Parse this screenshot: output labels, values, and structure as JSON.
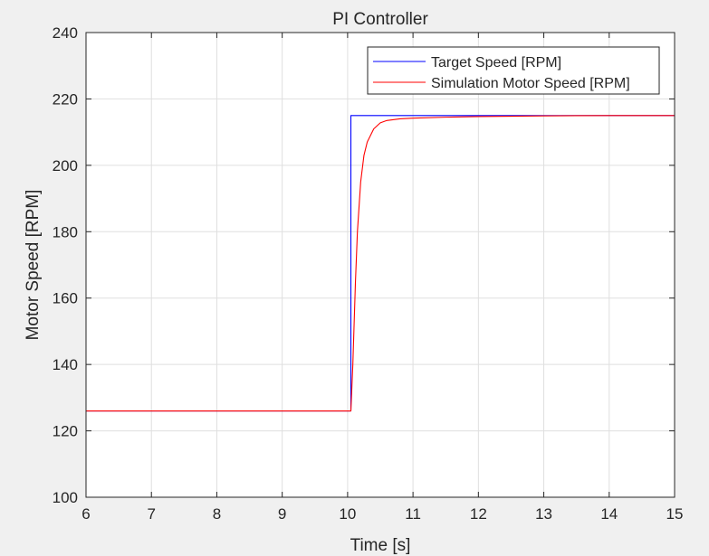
{
  "chart_data": {
    "type": "line",
    "title": "PI Controller",
    "xlabel": "Time [s]",
    "ylabel": "Motor Speed [RPM]",
    "xlim": [
      6,
      15
    ],
    "ylim": [
      100,
      240
    ],
    "xticks": [
      6,
      7,
      8,
      9,
      10,
      11,
      12,
      13,
      14,
      15
    ],
    "yticks": [
      100,
      120,
      140,
      160,
      180,
      200,
      220,
      240
    ],
    "grid": true,
    "legend_position": "top-right",
    "series": [
      {
        "name": "Target Speed [RPM]",
        "color": "#0000ff",
        "x": [
          6,
          10.05,
          10.05,
          15
        ],
        "y": [
          126,
          126,
          215,
          215
        ]
      },
      {
        "name": "Simulation Motor Speed [RPM]",
        "color": "#ff0000",
        "x": [
          6,
          10.05,
          10.08,
          10.12,
          10.15,
          10.2,
          10.25,
          10.3,
          10.4,
          10.5,
          10.6,
          10.8,
          11.0,
          11.5,
          12.0,
          13.0,
          14.0,
          15.0
        ],
        "y": [
          126,
          126,
          140,
          165,
          180,
          195,
          203,
          207,
          211,
          212.8,
          213.5,
          214.0,
          214.2,
          214.5,
          214.7,
          214.9,
          215,
          215
        ]
      }
    ]
  }
}
